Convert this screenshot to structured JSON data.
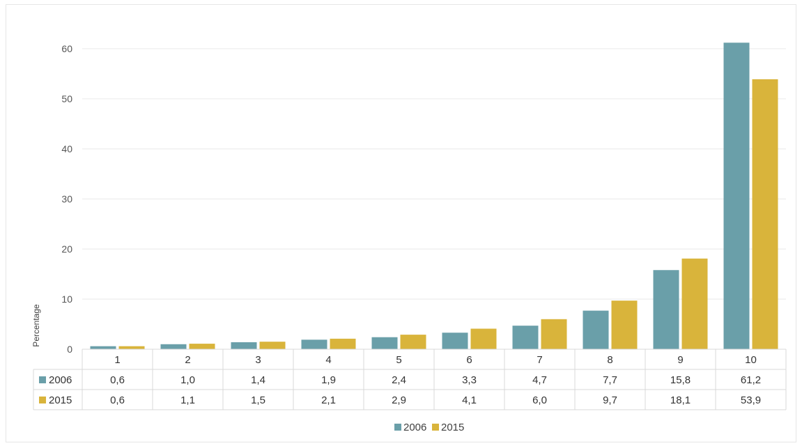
{
  "chart_data": {
    "type": "bar",
    "title": "",
    "xlabel": "",
    "ylabel": "Percentage",
    "categories": [
      "1",
      "2",
      "3",
      "4",
      "5",
      "6",
      "7",
      "8",
      "9",
      "10"
    ],
    "series": [
      {
        "name": "2006",
        "color": "#6a9fa9",
        "values": [
          0.6,
          1.0,
          1.4,
          1.9,
          2.4,
          3.3,
          4.7,
          7.7,
          15.8,
          61.2
        ],
        "labels": [
          "0,6",
          "1,0",
          "1,4",
          "1,9",
          "2,4",
          "3,3",
          "4,7",
          "7,7",
          "15,8",
          "61,2"
        ]
      },
      {
        "name": "2015",
        "color": "#d9b43b",
        "values": [
          0.6,
          1.1,
          1.5,
          2.1,
          2.9,
          4.1,
          6.0,
          9.7,
          18.1,
          53.9
        ],
        "labels": [
          "0,6",
          "1,1",
          "1,5",
          "2,1",
          "2,9",
          "4,1",
          "6,0",
          "9,7",
          "18,1",
          "53,9"
        ]
      }
    ],
    "ylim": [
      0,
      60
    ],
    "yticks": [
      0,
      10,
      20,
      30,
      40,
      50,
      60
    ],
    "grid": true,
    "legend_position": "bottom-center",
    "data_table": true
  }
}
